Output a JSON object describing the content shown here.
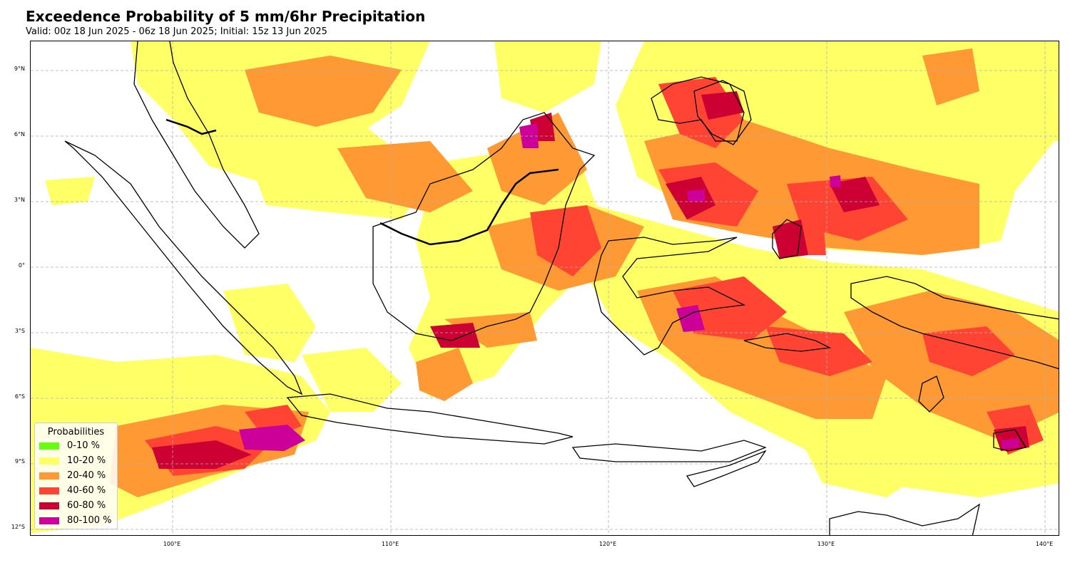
{
  "title": "Exceedence Probability of 5 mm/6hr Precipitation",
  "subtitle": "Valid: 00z 18 Jun 2025 - 06z 18 Jun 2025; Initial: 15z 13 Jun 2025",
  "lat_labels": [
    "9°N",
    "6°N",
    "3°N",
    "0°",
    "3°S",
    "6°S",
    "9°S",
    "12°S"
  ],
  "lon_labels": [
    "100°E",
    "110°E",
    "120°E",
    "130°E",
    "140°E"
  ],
  "legend": {
    "title": "Probabilities",
    "items": [
      {
        "label": "0-10 %",
        "color": "#66ff11"
      },
      {
        "label": "10-20 %",
        "color": "#ffff66"
      },
      {
        "label": "20-40 %",
        "color": "#ff9933"
      },
      {
        "label": "40-60 %",
        "color": "#ff4433"
      },
      {
        "label": "60-80 %",
        "color": "#cc0033"
      },
      {
        "label": "80-100 %",
        "color": "#cc0099"
      }
    ]
  },
  "map": {
    "projection": "plate carree",
    "lon_range": [
      93.5,
      141
    ],
    "lat_range": [
      -12.5,
      10.3
    ],
    "gridlines": true
  }
}
